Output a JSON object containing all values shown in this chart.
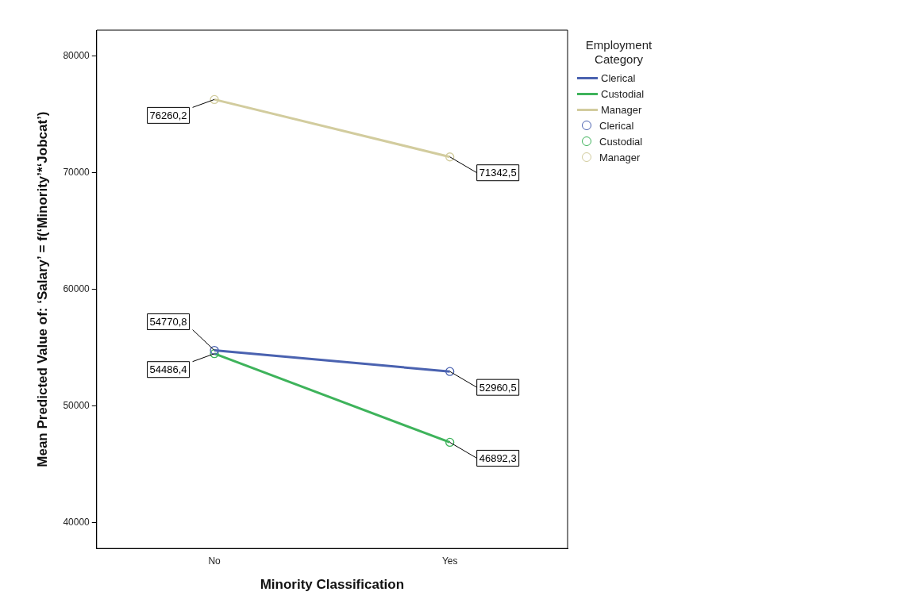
{
  "chart_data": {
    "type": "line",
    "xlabel": "Minority Classification",
    "ylabel": "Mean Predicted Value of: ‘Salary’ = f(‘Minority’*‘Jobcat’)",
    "legend_title": "Employment Category",
    "categories": [
      "No",
      "Yes"
    ],
    "series": [
      {
        "name": "Clerical",
        "color": "#4a62b0",
        "values": [
          54770.8,
          52960.5
        ],
        "value_labels": [
          "54770,8",
          "52960,5"
        ]
      },
      {
        "name": "Custodial",
        "color": "#3eb35b",
        "values": [
          54486.4,
          46892.3
        ],
        "value_labels": [
          "54486,4",
          "46892,3"
        ]
      },
      {
        "name": "Manager",
        "color": "#d2cc9e",
        "values": [
          76260.2,
          71342.5
        ],
        "value_labels": [
          "76260,2",
          "71342,5"
        ]
      }
    ],
    "ylim": [
      37800,
      82200
    ],
    "yticks": [
      40000,
      50000,
      60000,
      70000,
      80000
    ],
    "grid": false,
    "legend": "right",
    "marker": "circle",
    "line_style": "solid"
  }
}
